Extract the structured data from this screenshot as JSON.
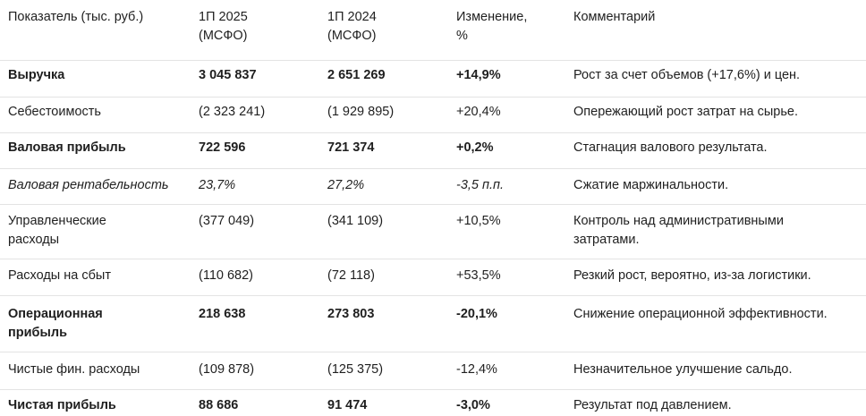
{
  "header": {
    "indicator": "Показатель (тыс. руб.)",
    "h1_line1": "1П 2025",
    "h1_line2": "(МСФО)",
    "h2024_line1": "1П 2024",
    "h2024_line2": "(МСФО)",
    "change_line1": "Изменение,",
    "change_line2": "%",
    "comment": "Комментарий"
  },
  "rows": [
    {
      "name": "Выручка",
      "v2025": "3 045 837",
      "v2024": "2 651 269",
      "change": "+14,9%",
      "comment": "Рост за счет объемов (+17,6%) и цен."
    },
    {
      "name": "Себестоимость",
      "v2025": "(2 323 241)",
      "v2024": "(1 929 895)",
      "change": "+20,4%",
      "comment": "Опережающий рост затрат на сырье."
    },
    {
      "name": "Валовая прибыль",
      "v2025": "722 596",
      "v2024": "721 374",
      "change": "+0,2%",
      "comment": "Стагнация валового результата."
    },
    {
      "name": "Валовая рентабельность",
      "v2025": "23,7%",
      "v2024": "27,2%",
      "change": "-3,5 п.п.",
      "comment": "Сжатие маржинальности."
    },
    {
      "name": "Управленческие расходы",
      "v2025": "(377 049)",
      "v2024": "(341 109)",
      "change": "+10,5%",
      "comment": "Контроль над административными затратами."
    },
    {
      "name": "Расходы на сбыт",
      "v2025": "(110 682)",
      "v2024": "(72 118)",
      "change": "+53,5%",
      "comment": "Резкий рост, вероятно, из-за логистики."
    },
    {
      "name": "Операционная прибыль",
      "v2025": "218 638",
      "v2024": "273 803",
      "change": "-20,1%",
      "comment": "Снижение операционной эффективности."
    },
    {
      "name": "Чистые фин. расходы",
      "v2025": "(109 878)",
      "v2024": "(125 375)",
      "change": "-12,4%",
      "comment": "Незначительное улучшение сальдо."
    },
    {
      "name": "Чистая прибыль",
      "v2025": "88 686",
      "v2024": "91 474",
      "change": "-3,0%",
      "comment": "Результат под давлением."
    }
  ]
}
